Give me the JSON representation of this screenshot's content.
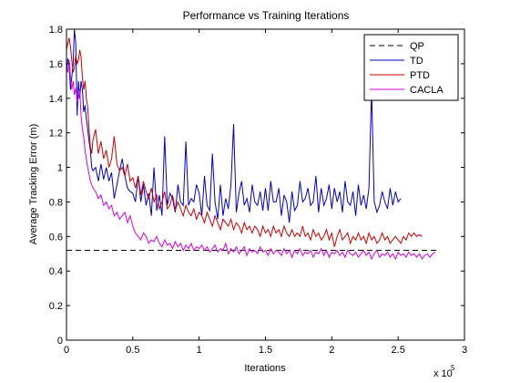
{
  "chart_data": {
    "type": "line",
    "title": "Performance vs Training Iterations",
    "xlabel": "Iterations",
    "ylabel": "Average Tracking Error (m)",
    "x_multiplier_label": "x 10",
    "x_multiplier_exponent": "5",
    "xlim": [
      0,
      3
    ],
    "ylim": [
      0,
      1.8
    ],
    "xticks": [
      "0",
      "0.5",
      "1",
      "1.5",
      "2",
      "2.5",
      "3"
    ],
    "yticks": [
      "0",
      "0.2",
      "0.4",
      "0.6",
      "0.8",
      "1",
      "1.2",
      "1.4",
      "1.6",
      "1.8"
    ],
    "legend_position": "top-right",
    "series": [
      {
        "name": "QP",
        "color": "#000000",
        "dash": "dashed",
        "x": [
          0,
          2.8
        ],
        "y": [
          0.52,
          0.52
        ]
      },
      {
        "name": "TD",
        "color": "#0000cc",
        "dash": "solid",
        "x": [
          0,
          0.01,
          0.02,
          0.03,
          0.04,
          0.05,
          0.06,
          0.07,
          0.08,
          0.09,
          0.1,
          0.11,
          0.12,
          0.13,
          0.14,
          0.15,
          0.16,
          0.17,
          0.18,
          0.19,
          0.2,
          0.22,
          0.24,
          0.26,
          0.28,
          0.3,
          0.32,
          0.34,
          0.36,
          0.38,
          0.4,
          0.42,
          0.44,
          0.46,
          0.48,
          0.5,
          0.52,
          0.54,
          0.56,
          0.58,
          0.6,
          0.62,
          0.64,
          0.66,
          0.68,
          0.7,
          0.72,
          0.74,
          0.76,
          0.78,
          0.8,
          0.82,
          0.84,
          0.86,
          0.88,
          0.9,
          0.92,
          0.94,
          0.96,
          0.98,
          1.0,
          1.02,
          1.04,
          1.06,
          1.08,
          1.1,
          1.12,
          1.14,
          1.16,
          1.18,
          1.2,
          1.22,
          1.24,
          1.26,
          1.28,
          1.3,
          1.32,
          1.34,
          1.36,
          1.38,
          1.4,
          1.42,
          1.44,
          1.46,
          1.48,
          1.5,
          1.52,
          1.54,
          1.56,
          1.58,
          1.6,
          1.62,
          1.64,
          1.66,
          1.68,
          1.7,
          1.72,
          1.74,
          1.76,
          1.78,
          1.8,
          1.82,
          1.84,
          1.86,
          1.88,
          1.9,
          1.92,
          1.94,
          1.96,
          1.98,
          2.0,
          2.02,
          2.04,
          2.06,
          2.08,
          2.1,
          2.12,
          2.14,
          2.16,
          2.18,
          2.2,
          2.22,
          2.24,
          2.26,
          2.28,
          2.3,
          2.32,
          2.34,
          2.36,
          2.38,
          2.4,
          2.42,
          2.44,
          2.46,
          2.48,
          2.5,
          2.52
        ],
        "y": [
          1.55,
          1.63,
          1.6,
          1.45,
          1.52,
          1.6,
          1.8,
          1.72,
          1.3,
          1.5,
          1.4,
          1.5,
          1.45,
          1.32,
          1.36,
          1.28,
          1.22,
          1.15,
          1.1,
          1.0,
          0.98,
          1.0,
          0.92,
          1.02,
          0.93,
          1.0,
          0.92,
          0.97,
          0.82,
          0.9,
          0.98,
          1.05,
          0.95,
          0.88,
          0.86,
          0.85,
          0.8,
          0.95,
          0.8,
          0.9,
          0.78,
          0.85,
          0.72,
          1.0,
          0.75,
          0.84,
          0.72,
          1.18,
          0.78,
          0.85,
          0.82,
          0.74,
          0.9,
          0.8,
          0.78,
          1.15,
          0.78,
          0.82,
          0.8,
          0.9,
          0.85,
          0.72,
          0.95,
          0.78,
          0.75,
          1.08,
          0.8,
          0.7,
          0.9,
          0.72,
          0.82,
          0.76,
          0.9,
          1.25,
          0.74,
          0.85,
          0.92,
          0.78,
          0.82,
          0.74,
          0.9,
          0.8,
          0.78,
          0.86,
          0.75,
          0.88,
          0.75,
          0.92,
          0.8,
          0.8,
          0.88,
          0.72,
          0.84,
          0.8,
          0.68,
          0.86,
          0.75,
          0.78,
          0.92,
          0.8,
          0.82,
          0.88,
          0.78,
          0.8,
          0.95,
          0.74,
          0.88,
          0.78,
          0.82,
          0.9,
          0.76,
          0.88,
          0.8,
          0.86,
          0.74,
          0.92,
          0.8,
          0.78,
          0.86,
          0.72,
          0.9,
          0.78,
          0.84,
          0.76,
          0.88,
          1.45,
          0.8,
          0.74,
          0.78,
          0.86,
          0.8,
          0.76,
          0.88,
          0.78,
          0.86,
          0.8,
          0.82
        ],
        "legend_only": false
      },
      {
        "name": "PTD",
        "color": "#cc0000",
        "dash": "solid",
        "x": [
          0,
          0.01,
          0.02,
          0.03,
          0.04,
          0.05,
          0.06,
          0.07,
          0.08,
          0.09,
          0.1,
          0.11,
          0.12,
          0.13,
          0.14,
          0.15,
          0.16,
          0.17,
          0.18,
          0.19,
          0.2,
          0.22,
          0.24,
          0.26,
          0.28,
          0.3,
          0.32,
          0.34,
          0.36,
          0.38,
          0.4,
          0.42,
          0.44,
          0.46,
          0.48,
          0.5,
          0.52,
          0.54,
          0.56,
          0.58,
          0.6,
          0.62,
          0.64,
          0.66,
          0.68,
          0.7,
          0.72,
          0.74,
          0.76,
          0.78,
          0.8,
          0.82,
          0.84,
          0.86,
          0.88,
          0.9,
          0.92,
          0.94,
          0.96,
          0.98,
          1.0,
          1.02,
          1.04,
          1.06,
          1.08,
          1.1,
          1.12,
          1.14,
          1.16,
          1.18,
          1.2,
          1.22,
          1.24,
          1.26,
          1.28,
          1.3,
          1.32,
          1.34,
          1.36,
          1.38,
          1.4,
          1.42,
          1.44,
          1.46,
          1.48,
          1.5,
          1.52,
          1.54,
          1.56,
          1.58,
          1.6,
          1.62,
          1.64,
          1.66,
          1.68,
          1.7,
          1.72,
          1.74,
          1.76,
          1.78,
          1.8,
          1.82,
          1.84,
          1.86,
          1.88,
          1.9,
          1.92,
          1.94,
          1.96,
          1.98,
          2.0,
          2.02,
          2.04,
          2.06,
          2.08,
          2.1,
          2.12,
          2.14,
          2.16,
          2.18,
          2.2,
          2.22,
          2.24,
          2.26,
          2.28,
          2.3,
          2.32,
          2.34,
          2.36,
          2.38,
          2.4,
          2.42,
          2.44,
          2.46,
          2.48,
          2.5,
          2.52,
          2.54,
          2.56,
          2.58,
          2.6,
          2.62,
          2.64,
          2.66,
          2.68
        ],
        "y": [
          1.68,
          1.72,
          1.75,
          1.7,
          1.62,
          1.55,
          1.58,
          1.65,
          1.6,
          1.62,
          1.68,
          1.64,
          1.52,
          1.45,
          1.5,
          1.4,
          1.35,
          1.22,
          1.12,
          1.08,
          1.16,
          1.22,
          1.08,
          1.15,
          1.05,
          1.1,
          1.0,
          1.05,
          1.18,
          1.02,
          0.98,
          1.0,
          0.95,
          1.02,
          0.92,
          0.94,
          0.88,
          0.95,
          0.84,
          0.92,
          0.86,
          0.82,
          0.88,
          0.8,
          0.84,
          0.76,
          0.8,
          0.86,
          0.76,
          0.78,
          0.84,
          0.75,
          0.8,
          0.76,
          0.72,
          0.78,
          0.74,
          0.72,
          0.76,
          0.7,
          0.74,
          0.72,
          0.68,
          0.74,
          0.7,
          0.66,
          0.72,
          0.68,
          0.64,
          0.7,
          0.68,
          0.66,
          0.7,
          0.64,
          0.68,
          0.66,
          0.62,
          0.68,
          0.64,
          0.66,
          0.62,
          0.66,
          0.64,
          0.6,
          0.66,
          0.62,
          0.64,
          0.6,
          0.66,
          0.62,
          0.64,
          0.6,
          0.66,
          0.62,
          0.6,
          0.64,
          0.6,
          0.62,
          0.6,
          0.66,
          0.6,
          0.62,
          0.58,
          0.64,
          0.6,
          0.62,
          0.58,
          0.6,
          0.64,
          0.58,
          0.62,
          0.54,
          0.6,
          0.64,
          0.58,
          0.6,
          0.62,
          0.56,
          0.6,
          0.58,
          0.62,
          0.58,
          0.6,
          0.56,
          0.62,
          0.58,
          0.6,
          0.56,
          0.58,
          0.62,
          0.58,
          0.6,
          0.56,
          0.58,
          0.6,
          0.58,
          0.56,
          0.6,
          0.58,
          0.62,
          0.6,
          0.62,
          0.6,
          0.61,
          0.6
        ],
        "legend_only": false
      },
      {
        "name": "CACLA",
        "color": "#dd00dd",
        "dash": "solid",
        "x": [
          0,
          0.01,
          0.02,
          0.03,
          0.04,
          0.05,
          0.06,
          0.07,
          0.08,
          0.09,
          0.1,
          0.11,
          0.12,
          0.13,
          0.14,
          0.15,
          0.16,
          0.17,
          0.18,
          0.19,
          0.2,
          0.22,
          0.24,
          0.26,
          0.28,
          0.3,
          0.32,
          0.34,
          0.36,
          0.38,
          0.4,
          0.42,
          0.44,
          0.46,
          0.48,
          0.5,
          0.52,
          0.54,
          0.56,
          0.58,
          0.6,
          0.62,
          0.64,
          0.66,
          0.68,
          0.7,
          0.72,
          0.74,
          0.76,
          0.78,
          0.8,
          0.82,
          0.84,
          0.86,
          0.88,
          0.9,
          0.92,
          0.94,
          0.96,
          0.98,
          1.0,
          1.02,
          1.04,
          1.06,
          1.08,
          1.1,
          1.12,
          1.14,
          1.16,
          1.18,
          1.2,
          1.22,
          1.24,
          1.26,
          1.28,
          1.3,
          1.32,
          1.34,
          1.36,
          1.38,
          1.4,
          1.42,
          1.44,
          1.46,
          1.48,
          1.5,
          1.52,
          1.54,
          1.56,
          1.58,
          1.6,
          1.62,
          1.64,
          1.66,
          1.68,
          1.7,
          1.72,
          1.74,
          1.76,
          1.78,
          1.8,
          1.82,
          1.84,
          1.86,
          1.88,
          1.9,
          1.92,
          1.94,
          1.96,
          1.98,
          2.0,
          2.02,
          2.04,
          2.06,
          2.08,
          2.1,
          2.12,
          2.14,
          2.16,
          2.18,
          2.2,
          2.22,
          2.24,
          2.26,
          2.28,
          2.3,
          2.32,
          2.34,
          2.36,
          2.38,
          2.4,
          2.42,
          2.44,
          2.46,
          2.48,
          2.5,
          2.52,
          2.54,
          2.56,
          2.58,
          2.6,
          2.62,
          2.64,
          2.66,
          2.68,
          2.7,
          2.72,
          2.74,
          2.76,
          2.78
        ],
        "y": [
          1.58,
          1.55,
          1.62,
          1.52,
          1.45,
          1.5,
          1.42,
          1.46,
          1.38,
          1.4,
          1.45,
          1.3,
          1.22,
          1.18,
          1.1,
          1.05,
          1.0,
          0.96,
          0.92,
          0.9,
          0.88,
          0.86,
          0.82,
          0.84,
          0.78,
          0.8,
          0.76,
          0.78,
          0.72,
          0.74,
          0.7,
          0.72,
          0.74,
          0.68,
          0.72,
          0.66,
          0.62,
          0.6,
          0.58,
          0.62,
          0.6,
          0.56,
          0.58,
          0.57,
          0.6,
          0.56,
          0.54,
          0.58,
          0.55,
          0.56,
          0.53,
          0.57,
          0.54,
          0.56,
          0.52,
          0.55,
          0.53,
          0.56,
          0.52,
          0.54,
          0.53,
          0.55,
          0.52,
          0.54,
          0.51,
          0.53,
          0.55,
          0.51,
          0.53,
          0.52,
          0.56,
          0.5,
          0.53,
          0.51,
          0.54,
          0.5,
          0.52,
          0.54,
          0.49,
          0.53,
          0.51,
          0.52,
          0.5,
          0.54,
          0.51,
          0.52,
          0.49,
          0.53,
          0.5,
          0.52,
          0.51,
          0.49,
          0.53,
          0.5,
          0.52,
          0.48,
          0.52,
          0.5,
          0.53,
          0.49,
          0.51,
          0.5,
          0.52,
          0.48,
          0.51,
          0.5,
          0.53,
          0.49,
          0.52,
          0.48,
          0.51,
          0.5,
          0.52,
          0.49,
          0.51,
          0.48,
          0.52,
          0.5,
          0.49,
          0.51,
          0.48,
          0.5,
          0.52,
          0.49,
          0.51,
          0.47,
          0.5,
          0.52,
          0.48,
          0.5,
          0.49,
          0.51,
          0.48,
          0.5,
          0.47,
          0.51,
          0.49,
          0.5,
          0.48,
          0.51,
          0.49,
          0.5,
          0.48,
          0.5,
          0.47,
          0.49,
          0.5,
          0.48,
          0.5,
          0.51
        ],
        "legend_only": false
      }
    ]
  }
}
